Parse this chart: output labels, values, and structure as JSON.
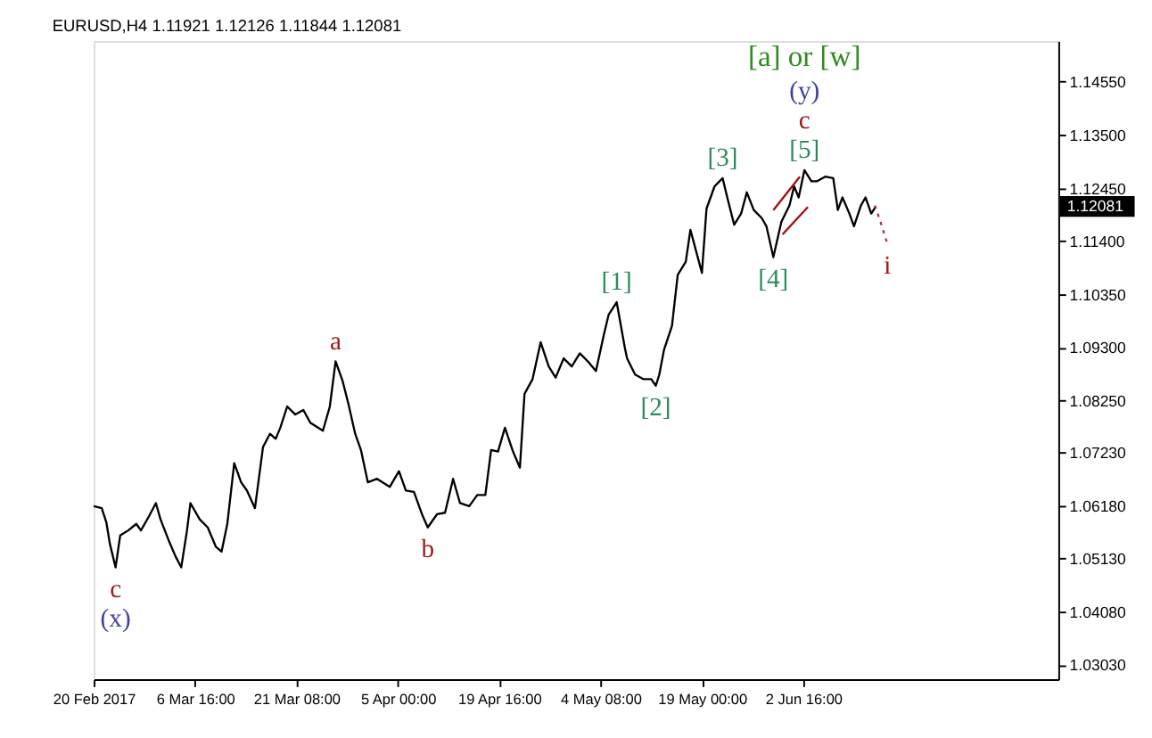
{
  "chart_data": {
    "type": "line",
    "title": "EURUSD,H4  1.11921 1.12126 1.11844 1.12081",
    "series": [
      {
        "color": "#000000",
        "line_style": "solid",
        "x": [
          "2017-02-20T00:00",
          "2017-02-21T04:00",
          "2017-02-21T20:00",
          "2017-02-22T08:00",
          "2017-02-23T04:00",
          "2017-02-23T20:00",
          "2017-02-25T00:00",
          "2017-02-26T04:00",
          "2017-02-26T20:00",
          "2017-02-28T00:00",
          "2017-03-01T00:00",
          "2017-03-01T16:00",
          "2017-03-02T20:00",
          "2017-03-03T20:00",
          "2017-03-04T16:00",
          "2017-03-05T12:00",
          "2017-03-06T00:00",
          "2017-03-07T08:00",
          "2017-03-08T12:00",
          "2017-03-09T16:00",
          "2017-03-10T12:00",
          "2017-03-11T08:00",
          "2017-03-12T08:00",
          "2017-03-13T08:00",
          "2017-03-14T04:00",
          "2017-03-15T08:00",
          "2017-03-16T12:00",
          "2017-03-17T12:00",
          "2017-03-18T08:00",
          "2017-03-19T00:00",
          "2017-03-20T00:00",
          "2017-03-21T04:00",
          "2017-03-22T08:00",
          "2017-03-23T08:00",
          "2017-03-25T04:00",
          "2017-03-26T04:00",
          "2017-03-27T00:00",
          "2017-03-28T00:00",
          "2017-03-28T20:00",
          "2017-03-29T20:00",
          "2017-03-30T16:00",
          "2017-03-31T16:00",
          "2017-04-02T00:00",
          "2017-04-03T20:00",
          "2017-04-05T04:00",
          "2017-04-06T04:00",
          "2017-04-07T08:00",
          "2017-04-08T12:00",
          "2017-04-09T08:00",
          "2017-04-10T16:00",
          "2017-04-11T20:00",
          "2017-04-13T00:00",
          "2017-04-14T00:00",
          "2017-04-15T08:00",
          "2017-04-16T12:00",
          "2017-04-17T16:00",
          "2017-04-18T12:00",
          "2017-04-19T12:00",
          "2017-04-20T12:00",
          "2017-04-21T16:00",
          "2017-04-22T16:00",
          "2017-04-23T08:00",
          "2017-04-24T12:00",
          "2017-04-25T16:00",
          "2017-04-26T20:00",
          "2017-04-27T20:00",
          "2017-04-29T00:00",
          "2017-04-30T04:00",
          "2017-05-01T08:00",
          "2017-05-02T12:00",
          "2017-05-03T16:00",
          "2017-05-04T20:00",
          "2017-05-05T12:00",
          "2017-05-06T16:00",
          "2017-05-07T20:00",
          "2017-05-08T04:00",
          "2017-05-09T08:00",
          "2017-05-10T12:00",
          "2017-05-11T16:00",
          "2017-05-12T08:00",
          "2017-05-12T20:00",
          "2017-05-13T12:00",
          "2017-05-14T16:00",
          "2017-05-15T12:00",
          "2017-05-16T16:00",
          "2017-05-17T08:00",
          "2017-05-19T00:00",
          "2017-05-19T16:00",
          "2017-05-20T20:00",
          "2017-05-22T00:00",
          "2017-05-22T16:00",
          "2017-05-23T16:00",
          "2017-05-24T16:00",
          "2017-05-25T12:00",
          "2017-05-26T12:00",
          "2017-05-27T16:00",
          "2017-05-28T08:00",
          "2017-05-29T08:00",
          "2017-05-30T12:00",
          "2017-05-31T16:00",
          "2017-06-01T08:00",
          "2017-06-02T00:00",
          "2017-06-02T20:00",
          "2017-06-03T20:00",
          "2017-06-04T16:00",
          "2017-06-05T20:00",
          "2017-06-07T00:00",
          "2017-06-07T16:00",
          "2017-06-08T08:00",
          "2017-06-09T08:00",
          "2017-06-10T00:00",
          "2017-06-11T00:00",
          "2017-06-11T16:00",
          "2017-06-12T12:00",
          "2017-06-13T04:00"
        ],
        "values": [
          1.0616,
          1.0612,
          1.0584,
          1.0542,
          1.0495,
          1.0558,
          1.0568,
          1.0581,
          1.0568,
          1.0596,
          1.0622,
          1.059,
          1.0549,
          1.0517,
          1.0495,
          1.0568,
          1.0622,
          1.059,
          1.0574,
          1.0536,
          1.0526,
          1.0581,
          1.0701,
          1.0663,
          1.0647,
          1.0612,
          1.0733,
          1.0759,
          1.0749,
          1.0771,
          1.0813,
          1.0797,
          1.0806,
          1.0781,
          1.0765,
          1.0813,
          1.0902,
          1.0864,
          1.0819,
          1.0759,
          1.0727,
          1.0663,
          1.067,
          1.0654,
          1.0685,
          1.0647,
          1.0644,
          1.06,
          1.0574,
          1.06,
          1.0603,
          1.067,
          1.0622,
          1.0616,
          1.0638,
          1.0638,
          1.0727,
          1.0724,
          1.0771,
          1.0724,
          1.0692,
          1.0838,
          1.0867,
          1.094,
          1.0892,
          1.087,
          1.0908,
          1.0892,
          1.0918,
          1.0902,
          1.0883,
          1.0956,
          1.0994,
          1.1019,
          1.093,
          1.0908,
          1.0876,
          1.0867,
          1.0867,
          1.0854,
          1.0876,
          1.0924,
          1.0972,
          1.1073,
          1.1099,
          1.1162,
          1.1077,
          1.1204,
          1.1248,
          1.1264,
          1.1226,
          1.1172,
          1.1194,
          1.1236,
          1.1201,
          1.1185,
          1.1169,
          1.1108,
          1.1178,
          1.121,
          1.1248,
          1.1226,
          1.128,
          1.1258,
          1.1258,
          1.1267,
          1.1264,
          1.1201,
          1.1226,
          1.1194,
          1.1169,
          1.121,
          1.1226,
          1.1194,
          1.1208
        ]
      },
      {
        "color": "#c0284a",
        "line_style": "dotted",
        "x": [
          "2017-06-13T00:00",
          "2017-06-13T20:00",
          "2017-06-14T20:00"
        ],
        "values": [
          1.121,
          1.1178,
          1.1134
        ]
      },
      {
        "color": "#a01010",
        "line_style": "solid",
        "x": [
          "2017-05-29T08:00",
          "2017-06-02T04:00"
        ],
        "values": [
          1.1201,
          1.1267
        ]
      },
      {
        "color": "#a01010",
        "line_style": "solid",
        "x": [
          "2017-05-30T16:00",
          "2017-06-03T08:00"
        ],
        "values": [
          1.1153,
          1.1207
        ]
      }
    ],
    "xlim": [
      "2017-02-20T00:00",
      "2017-07-09T13:30"
    ],
    "xticks": [
      {
        "value": "2017-02-20T00:00",
        "label": "20 Feb 2017"
      },
      {
        "value": "2017-03-06T16:00",
        "label": "6 Mar 16:00"
      },
      {
        "value": "2017-03-21T08:00",
        "label": "21 Mar 08:00"
      },
      {
        "value": "2017-04-05T00:00",
        "label": "5 Apr 00:00"
      },
      {
        "value": "2017-04-19T16:00",
        "label": "19 Apr 16:00"
      },
      {
        "value": "2017-05-04T08:00",
        "label": "4 May 08:00"
      },
      {
        "value": "2017-05-19T00:00",
        "label": "19 May 00:00"
      },
      {
        "value": "2017-06-02T16:00",
        "label": "2 Jun 16:00"
      }
    ],
    "ylim": [
      1.0274,
      1.1535
    ],
    "yticks": [
      {
        "value": 1.0303,
        "label": "1.03030"
      },
      {
        "value": 1.0408,
        "label": "1.04080"
      },
      {
        "value": 1.0513,
        "label": "1.05130"
      },
      {
        "value": 1.0618,
        "label": "1.06180"
      },
      {
        "value": 1.0723,
        "label": "1.07230"
      },
      {
        "value": 1.0825,
        "label": "1.08250"
      },
      {
        "value": 1.093,
        "label": "1.09300"
      },
      {
        "value": 1.1035,
        "label": "1.10350"
      },
      {
        "value": 1.114,
        "label": "1.11400"
      },
      {
        "value": 1.1245,
        "label": "1.12450"
      },
      {
        "value": 1.135,
        "label": "1.13500"
      },
      {
        "value": 1.1455,
        "label": "1.14550"
      }
    ],
    "ref_lines": [
      {
        "axis": "y",
        "value": 1.12081,
        "label": "1.12081",
        "color": "#000000"
      }
    ],
    "annotations": [
      "[a] or [w]",
      {
        "text": "(y)",
        "x": "2017-06-02T20:00",
        "y": 1.128
      },
      {
        "text": "c",
        "x": "2017-06-02T20:00",
        "y": 1.128
      },
      {
        "text": "[5]",
        "x": "2017-06-02T20:00",
        "y": 1.128
      },
      {
        "text": "[3]",
        "x": "2017-05-22T00:00",
        "y": 1.1264
      },
      {
        "text": "[4]",
        "x": "2017-05-29T08:00",
        "y": 1.1108
      },
      {
        "text": "[1]",
        "x": "2017-05-06T16:00",
        "y": 1.1019
      },
      {
        "text": "[2]",
        "x": "2017-05-12T08:00",
        "y": 1.0854
      },
      {
        "text": "a",
        "x": "2017-03-27T00:00",
        "y": 1.0902
      },
      {
        "text": "b",
        "x": "2017-04-09T08:00",
        "y": 1.0574
      },
      {
        "text": "c",
        "x": "2017-02-23T04:00",
        "y": 1.0495
      },
      {
        "text": "(x)",
        "x": "2017-02-23T04:00",
        "y": 1.0495
      },
      {
        "text": "i",
        "x": "2017-06-14T20:00",
        "y": 1.1134
      }
    ],
    "grid": false
  }
}
